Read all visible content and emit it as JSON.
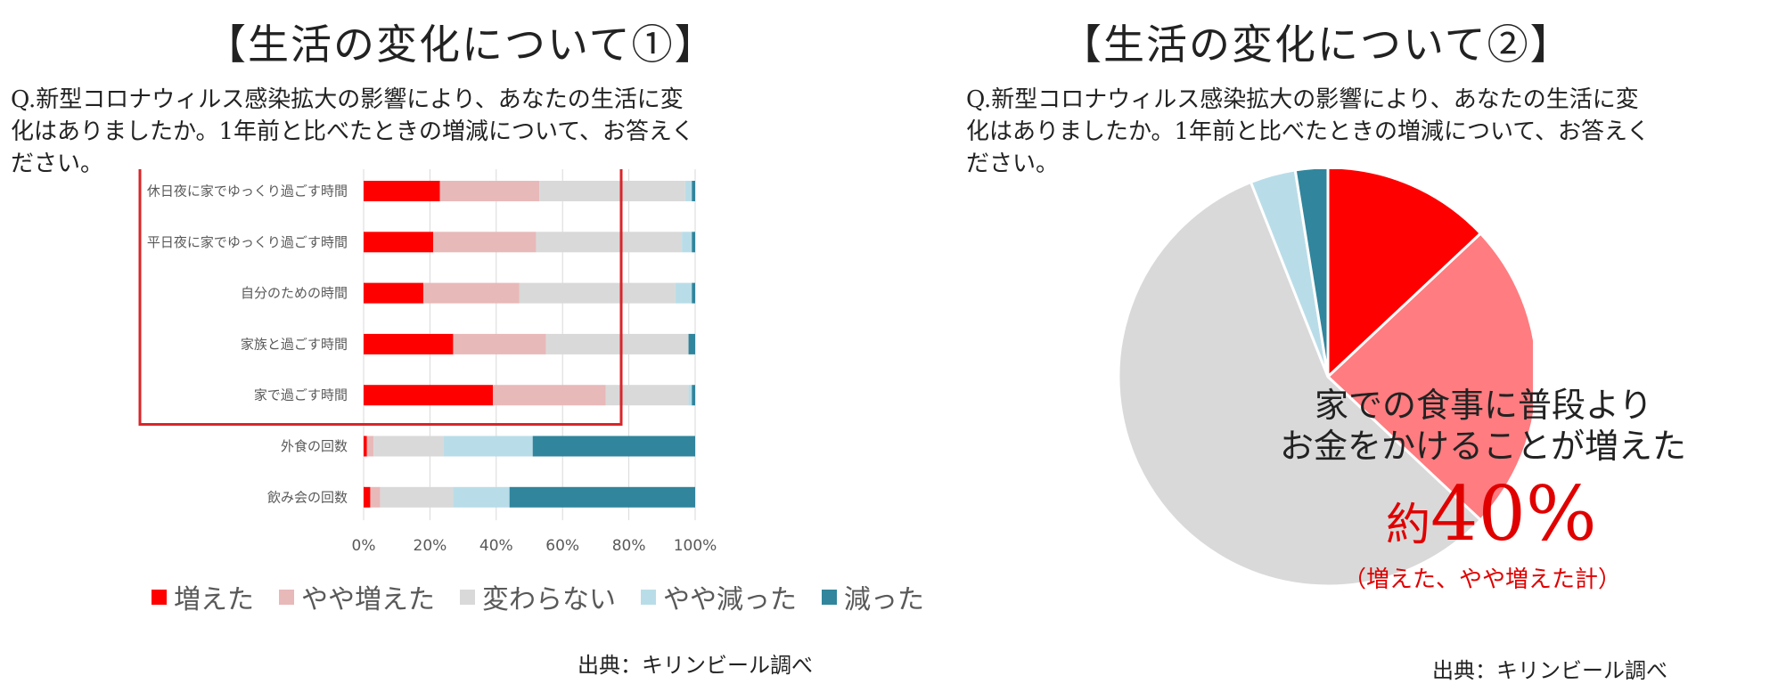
{
  "left": {
    "title": "【生活の変化について①】",
    "question_lines": [
      "Q.新型コロナウィルス感染拡大の影響により、あなたの生活に変",
      "化はありましたか。1年前と比べたときの増減について、お答えく",
      "ださい。"
    ],
    "source": "出典：キリンビール調べ"
  },
  "right": {
    "title": "【生活の変化について②】",
    "question_lines": [
      "Q.新型コロナウィルス感染拡大の影響により、あなたの生活に変",
      "化はありましたか。1年前と比べたときの増減について、お答えく",
      "ださい。"
    ],
    "callout": {
      "line1": "家での食事に普段より",
      "line2": "お金をかけることが増えた",
      "prefix": "約",
      "percent": "40%",
      "note": "（増えた、やや増えた計）"
    },
    "source": "出典：キリンビール調べ"
  },
  "colors": {
    "increased": "#ff0000",
    "slightly_increased": "#e8b9b9",
    "unchanged": "#d9d9d9",
    "slightly_decreased": "#b9dde8",
    "decreased": "#31859c",
    "highlight_box": "#d9252a",
    "pie_slightly_increased": "#ff7c80"
  },
  "chart_data": [
    {
      "type": "bar",
      "orientation": "horizontal",
      "stacked": true,
      "categories": [
        "休日夜に家でゆっくり過ごす時間",
        "平日夜に家でゆっくり過ごす時間",
        "自分のための時間",
        "家族と過ごす時間",
        "家で過ごす時間",
        "外食の回数",
        "飲み会の回数"
      ],
      "series": [
        {
          "name": "増えた",
          "values": [
            23,
            21,
            18,
            27,
            39,
            1,
            2
          ]
        },
        {
          "name": "やや増えた",
          "values": [
            30,
            31,
            29,
            28,
            34,
            2,
            3
          ]
        },
        {
          "name": "変わらない",
          "values": [
            44,
            44,
            47,
            43,
            25,
            21,
            22
          ]
        },
        {
          "name": "やや減った",
          "values": [
            2,
            3,
            5,
            0,
            1,
            27,
            17
          ]
        },
        {
          "name": "減った",
          "values": [
            1,
            1,
            1,
            2,
            1,
            49,
            56
          ]
        }
      ],
      "xlim": [
        0,
        100
      ],
      "xticks": [
        "0%",
        "20%",
        "40%",
        "60%",
        "80%",
        "100%"
      ],
      "grid": true,
      "legend": "bottom",
      "highlight_box_rows": [
        "休日夜に家でゆっくり過ごす時間",
        "平日夜に家でゆっくり過ごす時間",
        "自分のための時間",
        "家族と過ごす時間",
        "家で過ごす時間"
      ]
    },
    {
      "type": "pie",
      "slices": [
        {
          "name": "増えた",
          "value": 13
        },
        {
          "name": "やや増えた",
          "value": 24
        },
        {
          "name": "変わらない",
          "value": 57
        },
        {
          "name": "やや減った",
          "value": 3.5
        },
        {
          "name": "減った",
          "value": 2.5
        }
      ],
      "start": "12 o'clock",
      "direction": "clockwise"
    }
  ]
}
